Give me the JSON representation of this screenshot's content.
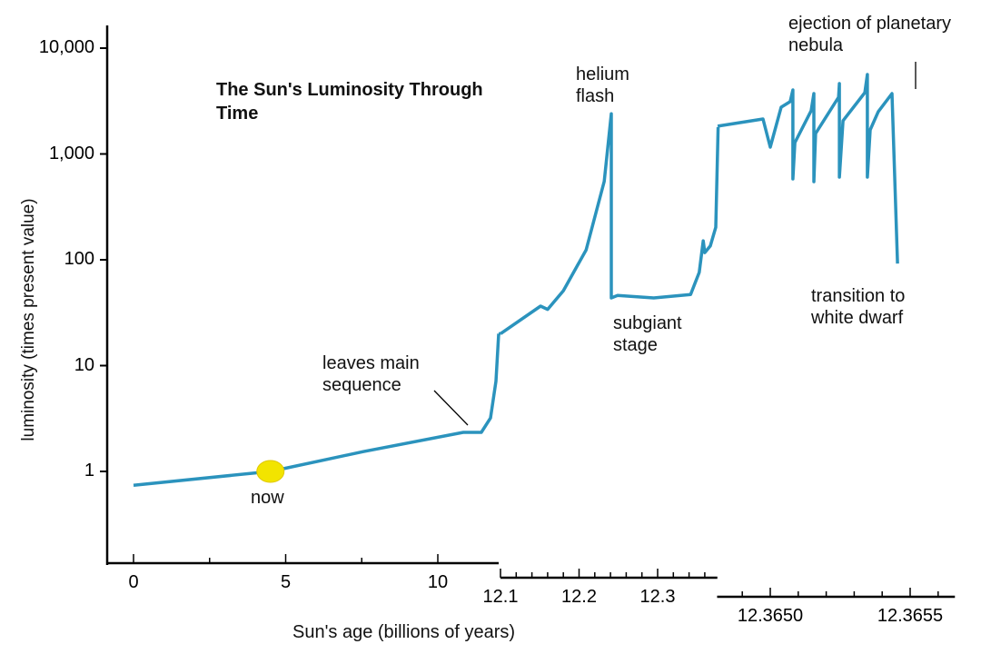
{
  "chart_data": {
    "type": "line",
    "title": "The Sun's Luminosity Through Time",
    "xlabel": "Sun's age (billions of years)",
    "ylabel": "luminosity (times present value)",
    "yscale": "log",
    "ylim": [
      0.1,
      10000
    ],
    "grid": false,
    "line_color": "#2b93bd",
    "marker_color": "#f2e400",
    "yticks": [
      {
        "v": 1,
        "label": "1"
      },
      {
        "v": 10,
        "label": "10"
      },
      {
        "v": 100,
        "label": "100"
      },
      {
        "v": 1000,
        "label": "1,000"
      },
      {
        "v": 10000,
        "label": "10,000"
      }
    ],
    "x_segments": [
      {
        "range": [
          -0.9,
          12.0
        ],
        "major_ticks": [
          {
            "v": 0,
            "label": "0"
          },
          {
            "v": 5,
            "label": "5"
          },
          {
            "v": 10,
            "label": "10"
          }
        ],
        "minor_step": 2.5
      },
      {
        "range": [
          12.1,
          12.376
        ],
        "major_ticks": [
          {
            "v": 12.1,
            "label": "12.1"
          },
          {
            "v": 12.2,
            "label": "12.2"
          },
          {
            "v": 12.3,
            "label": "12.3"
          }
        ],
        "minor_step": 0.02
      },
      {
        "range": [
          12.36481,
          12.36566
        ],
        "major_ticks": [
          {
            "v": 12.365,
            "label": "12.3650"
          },
          {
            "v": 12.3655,
            "label": "12.3655"
          }
        ],
        "minor_step": 0.0001
      }
    ],
    "series": [
      [
        [
          0,
          0.74
        ],
        [
          4.5,
          1.0
        ],
        [
          7.55,
          1.54
        ],
        [
          10.84,
          2.34
        ],
        [
          11.43,
          2.34
        ],
        [
          11.73,
          3.2
        ],
        [
          11.91,
          7.1
        ],
        [
          12.0,
          20
        ]
      ],
      [
        [
          12.1,
          20
        ],
        [
          12.151,
          36.5
        ],
        [
          12.16,
          34
        ],
        [
          12.18,
          51
        ],
        [
          12.209,
          124
        ],
        [
          12.232,
          550
        ],
        [
          12.241,
          2400
        ],
        [
          12.241,
          43.6
        ],
        [
          12.249,
          46
        ],
        [
          12.295,
          43.6
        ],
        [
          12.342,
          47
        ],
        [
          12.353,
          76
        ],
        [
          12.358,
          151
        ],
        [
          12.36,
          117
        ],
        [
          12.367,
          135
        ],
        [
          12.374,
          203
        ],
        [
          12.377,
          1790
        ]
      ],
      [
        [
          12.364812,
          1830
        ],
        [
          12.364974,
          2140
        ],
        [
          12.365,
          1160
        ],
        [
          12.365039,
          2770
        ],
        [
          12.365071,
          3120
        ],
        [
          12.365081,
          4030
        ],
        [
          12.365081,
          581
        ],
        [
          12.365088,
          1280
        ],
        [
          12.365146,
          2560
        ],
        [
          12.365156,
          3720
        ],
        [
          12.365156,
          547
        ],
        [
          12.365162,
          1560
        ],
        [
          12.365244,
          3440
        ],
        [
          12.365247,
          4630
        ],
        [
          12.365247,
          604
        ],
        [
          12.36526,
          2060
        ],
        [
          12.365338,
          3800
        ],
        [
          12.365347,
          5640
        ],
        [
          12.365347,
          604
        ],
        [
          12.365357,
          1690
        ],
        [
          12.365386,
          2510
        ],
        [
          12.365435,
          3720
        ],
        [
          12.365455,
          92
        ]
      ]
    ],
    "now_marker": {
      "age": 4.5,
      "luminosity": 1.0,
      "label": "now"
    },
    "annotations": {
      "leaves_main_sequence": "leaves main sequence",
      "helium_flash": "helium flash",
      "subgiant_stage": "subgiant stage",
      "ejection": "ejection of planetary nebula",
      "white_dwarf": "transition to white dwarf"
    }
  }
}
